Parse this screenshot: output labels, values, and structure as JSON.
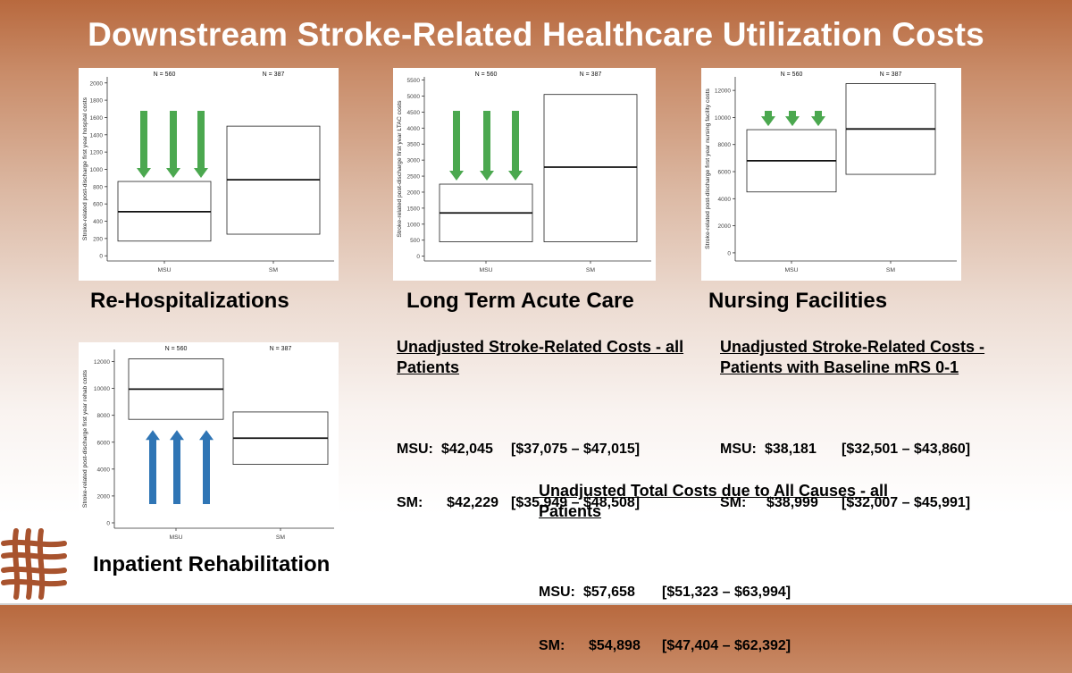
{
  "slide": {
    "title": "Downstream Stroke-Related Healthcare Utilization Costs",
    "colors": {
      "up_arrow": "#2f75b5",
      "down_arrow": "#4ba84f",
      "title": "#ffffff"
    }
  },
  "chart_data": [
    {
      "type": "boxplot",
      "caption": "Re-Hospitalizations",
      "ylabel": "Stroke-related post-discharge first year hospital costs",
      "categories": [
        "MSU",
        "SM"
      ],
      "n_labels": [
        "N = 560",
        "N = 387"
      ],
      "yticks": [
        0,
        200,
        400,
        600,
        800,
        1000,
        1200,
        1400,
        1600,
        1800,
        2000
      ],
      "ylim": [
        -60,
        2070
      ],
      "boxes": [
        {
          "q1": 170,
          "median": 510,
          "q3": 860
        },
        {
          "q1": 250,
          "median": 880,
          "q3": 1500
        }
      ],
      "arrows": {
        "direction": "down",
        "color": "green",
        "count": 3,
        "under_category": "MSU"
      }
    },
    {
      "type": "boxplot",
      "caption": "Long Term Acute Care",
      "ylabel": "Stroke-related post-discharge first year LTAC costs",
      "categories": [
        "MSU",
        "SM"
      ],
      "n_labels": [
        "N = 560",
        "N = 387"
      ],
      "yticks": [
        0,
        500,
        1000,
        1500,
        2000,
        2500,
        3000,
        3500,
        4000,
        4500,
        5000,
        5500
      ],
      "ylim": [
        -150,
        5600
      ],
      "boxes": [
        {
          "q1": 450,
          "median": 1350,
          "q3": 2250
        },
        {
          "q1": 450,
          "median": 2780,
          "q3": 5050
        }
      ],
      "arrows": {
        "direction": "down",
        "color": "green",
        "count": 3,
        "under_category": "MSU"
      }
    },
    {
      "type": "boxplot",
      "caption": "Nursing Facilities",
      "ylabel": "Stroke-related post-discharge first year nursing facility costs",
      "categories": [
        "MSU",
        "SM"
      ],
      "n_labels": [
        "N = 560",
        "N = 387"
      ],
      "yticks": [
        0,
        2000,
        4000,
        6000,
        8000,
        10000,
        12000
      ],
      "ylim": [
        -600,
        13000
      ],
      "boxes": [
        {
          "q1": 4500,
          "median": 6800,
          "q3": 9100
        },
        {
          "q1": 5800,
          "median": 9150,
          "q3": 12500
        }
      ],
      "arrows": {
        "direction": "down",
        "color": "green",
        "count": 3,
        "under_category": "MSU"
      }
    },
    {
      "type": "boxplot",
      "caption": "Inpatient Rehabilitation",
      "ylabel": "Stroke-related post-discharge first year rehab costs",
      "categories": [
        "MSU",
        "SM"
      ],
      "n_labels": [
        "N = 560",
        "N = 387"
      ],
      "yticks": [
        0,
        2000,
        4000,
        6000,
        8000,
        10000,
        12000
      ],
      "ylim": [
        -400,
        12900
      ],
      "boxes": [
        {
          "q1": 7700,
          "median": 9950,
          "q3": 12200
        },
        {
          "q1": 4350,
          "median": 6300,
          "q3": 8250
        }
      ],
      "arrows": {
        "direction": "up",
        "color": "blue",
        "count": 3,
        "under_category": "MSU"
      }
    }
  ],
  "cost_tables": [
    {
      "heading": "Unadjusted Stroke-Related Costs - all Patients",
      "rows": [
        {
          "group": "MSU:",
          "value": "$42,045",
          "ci": "[$37,075 – $47,015]"
        },
        {
          "group": "SM:",
          "value": "$42,229",
          "ci": "[$35,949 – $48,508]"
        }
      ]
    },
    {
      "heading": "Unadjusted Stroke-Related Costs - Patients with Baseline mRS 0-1",
      "rows": [
        {
          "group": "MSU:",
          "value": "$38,181",
          "ci": "[$32,501 – $43,860]"
        },
        {
          "group": "SM:",
          "value": "$38,999",
          "ci": "[$32,007 – $45,991]"
        }
      ]
    },
    {
      "heading": "Unadjusted Total Costs due to All Causes - all Patients",
      "rows": [
        {
          "group": "MSU:",
          "value": "$57,658",
          "ci": "[$51,323 – $63,994]"
        },
        {
          "group": "SM:",
          "value": "$54,898",
          "ci": "[$47,404 – $62,392]"
        }
      ]
    }
  ]
}
